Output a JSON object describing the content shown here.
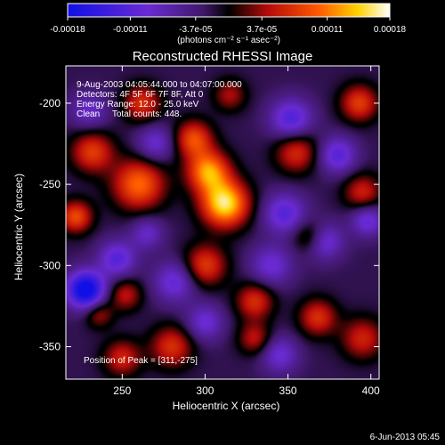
{
  "chart_data": {
    "type": "heatmap",
    "title": "Reconstructed RHESSI Image",
    "xlabel": "Heliocentric X (arcsec)",
    "ylabel": "Heliocentric Y (arcsec)",
    "xlim": [
      216,
      405
    ],
    "ylim": [
      -370,
      -177
    ],
    "x_ticks": [
      250,
      300,
      350,
      400
    ],
    "y_ticks": [
      -200,
      -250,
      -300,
      -350
    ],
    "colorbar": {
      "range": [
        -0.00018,
        0.00018
      ],
      "tick_labels": [
        "-0.00018",
        "-0.00011",
        "-3.7e-05",
        "3.7e-05",
        "0.00011",
        "0.00018"
      ],
      "unit_label": "(photons cm⁻² s⁻¹ asec⁻²)"
    },
    "annotations": [
      "9-Aug-2003 04:05:44.000 to 04:07:00.000",
      "Detectors: 4F 5F 6F 7F 8F, Att 0",
      "Energy Range: 12.0 - 25.0 keV",
      "Clean     Total counts: 448."
    ],
    "peak_label": "Position of Peak = [311,-275]",
    "peak": {
      "x": 311,
      "y": -275
    },
    "timestamp": "6-Jun-2013 05:45",
    "blobs": [
      {
        "x": 312,
        "y": -262,
        "v": 1.0,
        "s": 10
      },
      {
        "x": 302,
        "y": -242,
        "v": 0.8,
        "s": 9
      },
      {
        "x": 293,
        "y": -222,
        "v": 0.6,
        "s": 8
      },
      {
        "x": 260,
        "y": -250,
        "v": 0.7,
        "s": 11
      },
      {
        "x": 232,
        "y": -230,
        "v": 0.55,
        "s": 9
      },
      {
        "x": 222,
        "y": -270,
        "v": 0.6,
        "s": 7
      },
      {
        "x": 300,
        "y": -300,
        "v": 0.55,
        "s": 9
      },
      {
        "x": 355,
        "y": -230,
        "v": 0.5,
        "s": 9
      },
      {
        "x": 393,
        "y": -200,
        "v": 0.55,
        "s": 8
      },
      {
        "x": 395,
        "y": -255,
        "v": 0.45,
        "s": 8
      },
      {
        "x": 363,
        "y": -282,
        "v": 0.35,
        "s": 7
      },
      {
        "x": 330,
        "y": -322,
        "v": 0.5,
        "s": 8
      },
      {
        "x": 368,
        "y": -332,
        "v": 0.5,
        "s": 8
      },
      {
        "x": 395,
        "y": -345,
        "v": 0.45,
        "s": 9
      },
      {
        "x": 280,
        "y": -350,
        "v": 0.5,
        "s": 9
      },
      {
        "x": 250,
        "y": -357,
        "v": 0.45,
        "s": 8
      },
      {
        "x": 252,
        "y": -318,
        "v": 0.4,
        "s": 7
      },
      {
        "x": 262,
        "y": -200,
        "v": 0.5,
        "s": 8
      },
      {
        "x": 315,
        "y": -195,
        "v": 0.35,
        "s": 7
      },
      {
        "x": 330,
        "y": -345,
        "v": 0.4,
        "s": 7
      },
      {
        "x": 236,
        "y": -330,
        "v": 0.35,
        "s": 6
      },
      {
        "x": 228,
        "y": -315,
        "v": -1.0,
        "s": 8
      },
      {
        "x": 247,
        "y": -296,
        "v": -0.5,
        "s": 8
      },
      {
        "x": 352,
        "y": -210,
        "v": -0.55,
        "s": 9
      },
      {
        "x": 380,
        "y": -232,
        "v": -0.5,
        "s": 8
      },
      {
        "x": 348,
        "y": -268,
        "v": -0.5,
        "s": 9
      },
      {
        "x": 372,
        "y": -285,
        "v": -0.45,
        "s": 8
      },
      {
        "x": 398,
        "y": -272,
        "v": -0.45,
        "s": 7
      },
      {
        "x": 282,
        "y": -310,
        "v": -0.45,
        "s": 9
      },
      {
        "x": 270,
        "y": -225,
        "v": -0.4,
        "s": 8
      },
      {
        "x": 340,
        "y": -300,
        "v": -0.4,
        "s": 9
      },
      {
        "x": 300,
        "y": -335,
        "v": -0.4,
        "s": 8
      },
      {
        "x": 345,
        "y": -355,
        "v": -0.4,
        "s": 8
      },
      {
        "x": 265,
        "y": -280,
        "v": -0.35,
        "s": 7
      },
      {
        "x": 230,
        "y": -205,
        "v": -0.35,
        "s": 8
      }
    ]
  }
}
